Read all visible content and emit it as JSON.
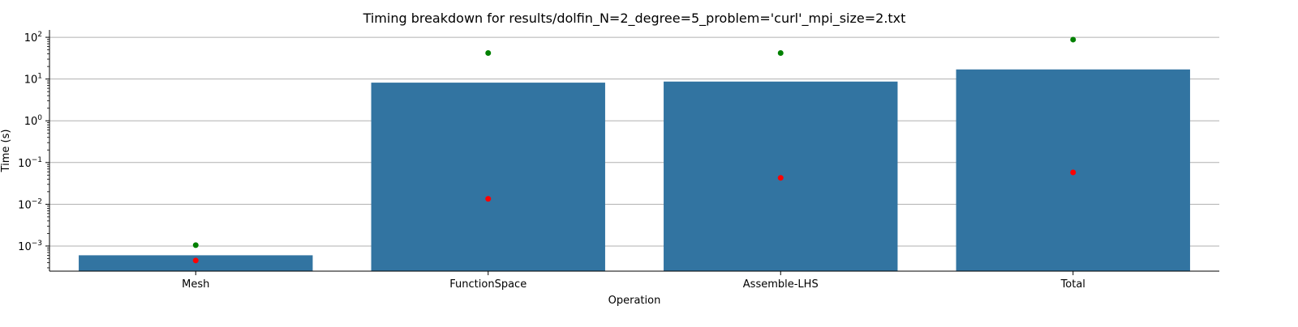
{
  "chart_data": {
    "type": "bar",
    "title": "Timing breakdown for results/dolfin_N=2_degree=5_problem='curl'_mpi_size=2.txt",
    "xlabel": "Operation",
    "ylabel": "Time (s)",
    "yscale": "log",
    "ylim": [
      0.00025,
      150
    ],
    "grid": "y-major",
    "categories": [
      "Mesh",
      "FunctionSpace",
      "Assemble-LHS",
      "Total"
    ],
    "series": [
      {
        "values": [
          0.0006,
          8.2,
          8.7,
          17.0
        ],
        "color": "#3274a1"
      }
    ],
    "overlay_points": [
      {
        "values": [
          0.00105,
          42.0,
          42.0,
          88.0
        ],
        "color": "#008000"
      },
      {
        "values": [
          0.00045,
          0.0135,
          0.043,
          0.058
        ],
        "color": "#ff0000"
      }
    ],
    "yticks": [
      {
        "value": 0.001,
        "base": "10",
        "exp": "−3"
      },
      {
        "value": 0.01,
        "base": "10",
        "exp": "−2"
      },
      {
        "value": 0.1,
        "base": "10",
        "exp": "−1"
      },
      {
        "value": 1,
        "base": "10",
        "exp": "0"
      },
      {
        "value": 10,
        "base": "10",
        "exp": "1"
      },
      {
        "value": 100,
        "base": "10",
        "exp": "2"
      }
    ]
  }
}
